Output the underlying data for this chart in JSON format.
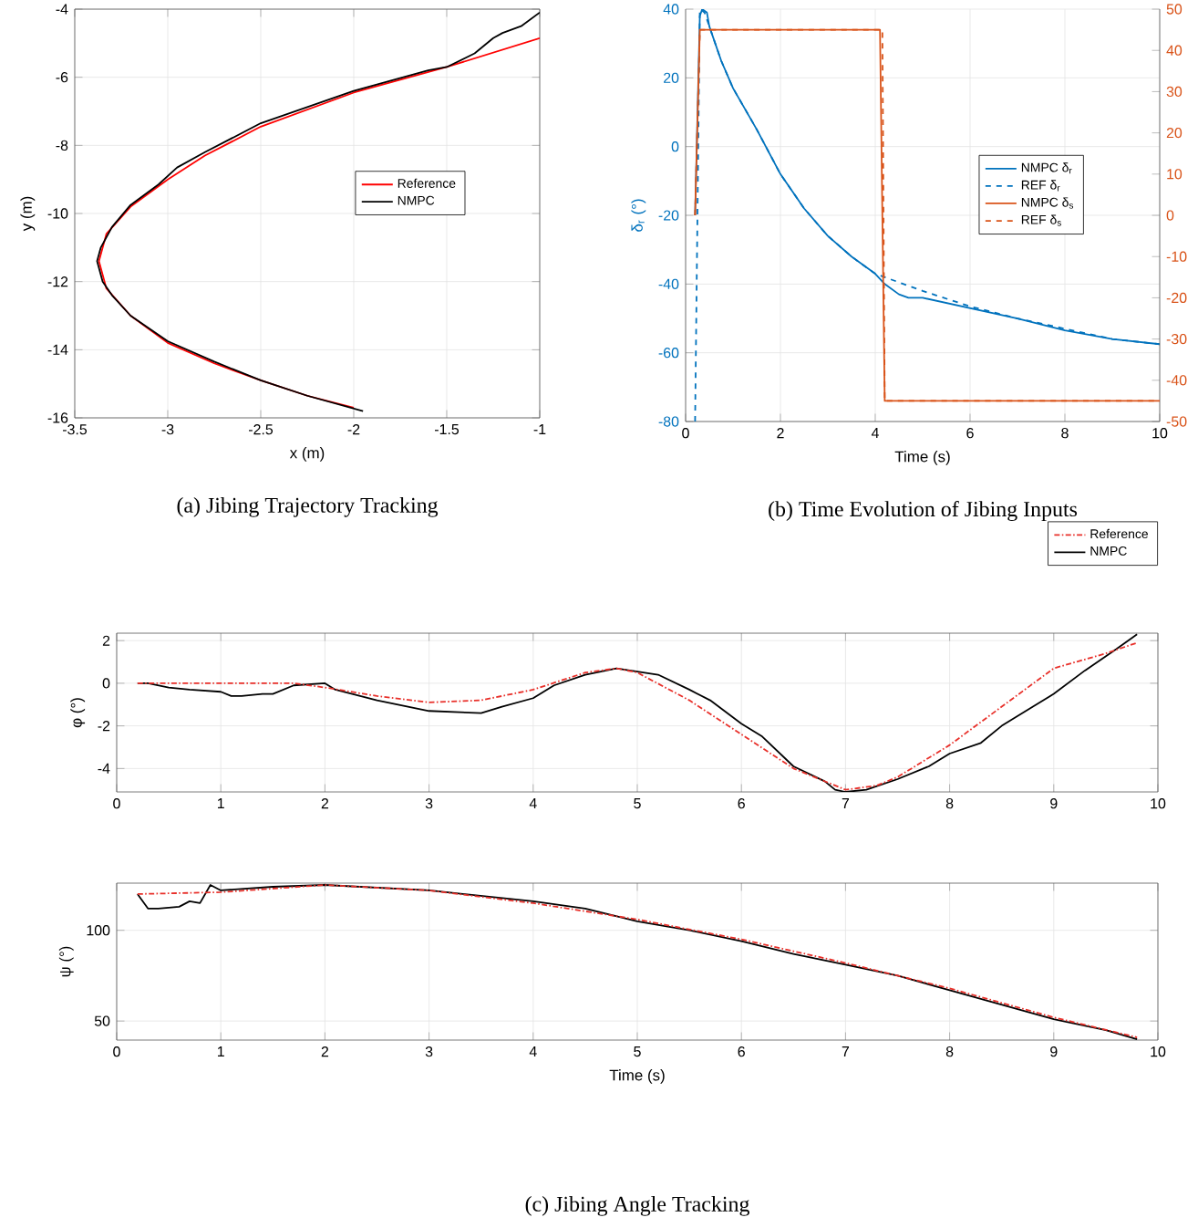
{
  "chart_data": [
    {
      "type": "line",
      "xlabel": "x (m)",
      "ylabel": "y (m)",
      "xlim": [
        -3.5,
        -1
      ],
      "ylim": [
        -16,
        -4
      ],
      "xticks": [
        -3.5,
        -3,
        -2.5,
        -2,
        -1.5,
        -1
      ],
      "yticks": [
        -16,
        -14,
        -12,
        -10,
        -8,
        -6,
        -4
      ],
      "grid": true,
      "legend": "right",
      "annotations": [
        "(a) Jibing Trajectory Tracking"
      ],
      "series": [
        {
          "name": "Reference",
          "color": "#ff0000",
          "line_style": "solid",
          "x": [
            -1,
            -1.5,
            -2,
            -2.5,
            -2.8,
            -3.0,
            -3.2,
            -3.33,
            -3.37,
            -3.33,
            -3.2,
            -3.0,
            -2.75,
            -2.5,
            -2.25,
            -2.0
          ],
          "values": [
            -4.85,
            -5.7,
            -6.45,
            -7.45,
            -8.3,
            -9.0,
            -9.8,
            -10.6,
            -11.4,
            -12.2,
            -13.0,
            -13.8,
            -14.4,
            -14.9,
            -15.35,
            -15.7
          ]
        },
        {
          "name": "NMPC",
          "color": "#000000",
          "line_style": "solid",
          "x": [
            -1,
            -1.1,
            -1.2,
            -1.25,
            -1.35,
            -1.5,
            -1.6,
            -2,
            -2.5,
            -2.8,
            -2.95,
            -3.05,
            -3.2,
            -3.3,
            -3.36,
            -3.38,
            -3.35,
            -3.3,
            -3.2,
            -3.0,
            -2.75,
            -2.5,
            -2.25,
            -1.95
          ],
          "values": [
            -4.1,
            -4.5,
            -4.7,
            -4.85,
            -5.3,
            -5.7,
            -5.8,
            -6.4,
            -7.35,
            -8.2,
            -8.65,
            -9.15,
            -9.75,
            -10.4,
            -11.0,
            -11.4,
            -12.0,
            -12.4,
            -13.0,
            -13.75,
            -14.35,
            -14.9,
            -15.35,
            -15.8
          ]
        }
      ]
    },
    {
      "type": "line",
      "xlabel": "Time (s)",
      "ylabel": "δ$_{r}$ (°)",
      "xlim": [
        0,
        10
      ],
      "ylim": [
        -80,
        40
      ],
      "y2lim": [
        -50,
        50
      ],
      "xticks": [
        0,
        2,
        4,
        6,
        8,
        10
      ],
      "yticks": [
        -80,
        -60,
        -40,
        -20,
        0,
        20,
        40
      ],
      "y2ticks": [
        -50,
        -40,
        -30,
        -20,
        -10,
        0,
        10,
        20,
        30,
        40,
        50
      ],
      "grid": true,
      "legend": "right",
      "annotations": [
        "(b) Time Evolution of Jibing Inputs"
      ],
      "series": [
        {
          "name": "NMPC δ$_{r}$",
          "color": "#0072bd",
          "line_style": "solid",
          "x": [
            0.2,
            0.3,
            0.35,
            0.45,
            0.5,
            0.75,
            1,
            1.5,
            2,
            2.5,
            3,
            3.5,
            4,
            4.2,
            4.5,
            4.7,
            5,
            5.5,
            6,
            7,
            8,
            9,
            10
          ],
          "values": [
            -20,
            38,
            40,
            39,
            35,
            25,
            17,
            5,
            -8,
            -18,
            -26,
            -32,
            -37,
            -40,
            -43,
            -44,
            -44,
            -45.5,
            -47,
            -50,
            -53.5,
            -56,
            -57.5
          ]
        },
        {
          "name": "REF δ$_{r}$",
          "color": "#0072bd",
          "line_style": "dashed",
          "x": [
            0.2,
            0.3,
            0.4,
            0.5,
            0.75,
            1,
            1.5,
            2,
            2.5,
            3,
            3.5,
            4,
            4.1,
            4.2,
            5,
            6,
            7,
            8,
            9,
            10
          ],
          "values": [
            -80,
            40,
            39,
            35,
            25,
            17,
            5,
            -8,
            -18,
            -26,
            -32,
            -37,
            -37.5,
            -38,
            -42,
            -46.5,
            -50,
            -53,
            -56,
            -57.5
          ]
        },
        {
          "name": "NMPC δ$_{s}$",
          "color": "#d95319",
          "line_style": "solid",
          "axis": "y2",
          "x": [
            0.2,
            0.3,
            4.1,
            4.2,
            10
          ],
          "values": [
            0,
            45,
            45,
            -45,
            -45
          ]
        },
        {
          "name": "REF δ$_{s}$",
          "color": "#d95319",
          "line_style": "dashed",
          "axis": "y2",
          "x": [
            0.2,
            0.3,
            4.15,
            4.2,
            10
          ],
          "values": [
            0,
            45,
            45,
            -45,
            -45
          ]
        }
      ]
    },
    {
      "type": "line",
      "ylabel": "φ (°)",
      "xlim": [
        0,
        10
      ],
      "ylim": [
        -5.1,
        2.35
      ],
      "xticks": [
        0,
        1,
        2,
        3,
        4,
        5,
        6,
        7,
        8,
        9,
        10
      ],
      "yticks": [
        -4,
        -2,
        0,
        2
      ],
      "grid": true,
      "legend": "top right",
      "series": [
        {
          "name": "Reference",
          "color": "#e8302a",
          "line_style": "dashdot",
          "x": [
            0.2,
            0.5,
            1.7,
            2,
            2.5,
            3,
            3.5,
            4,
            4.5,
            4.8,
            5,
            5.5,
            6,
            6.5,
            7,
            7.3,
            7.5,
            8,
            8.5,
            9,
            9.5,
            9.8
          ],
          "values": [
            0,
            0,
            0,
            -0.2,
            -0.6,
            -0.9,
            -0.8,
            -0.3,
            0.5,
            0.7,
            0.5,
            -0.8,
            -2.4,
            -4,
            -5,
            -4.8,
            -4.4,
            -2.9,
            -1.1,
            0.7,
            1.4,
            1.9
          ]
        },
        {
          "name": "NMPC",
          "color": "#000000",
          "line_style": "solid",
          "x": [
            0.2,
            0.3,
            0.5,
            0.7,
            1,
            1.1,
            1.2,
            1.4,
            1.5,
            1.7,
            2,
            2.1,
            2.5,
            3,
            3.5,
            3.7,
            4,
            4.2,
            4.5,
            4.8,
            5.2,
            5.5,
            5.7,
            6,
            6.2,
            6.5,
            6.8,
            6.9,
            7,
            7.2,
            7.5,
            7.8,
            8,
            8.3,
            8.5,
            8.8,
            9,
            9.3,
            9.6,
            9.8
          ],
          "values": [
            0,
            0,
            -0.2,
            -0.3,
            -0.4,
            -0.6,
            -0.6,
            -0.5,
            -0.5,
            -0.1,
            0,
            -0.3,
            -0.8,
            -1.3,
            -1.4,
            -1.1,
            -0.7,
            -0.1,
            0.4,
            0.7,
            0.4,
            -0.3,
            -0.8,
            -1.9,
            -2.5,
            -3.9,
            -4.6,
            -5,
            -5.1,
            -5,
            -4.5,
            -3.9,
            -3.3,
            -2.8,
            -2,
            -1.1,
            -0.5,
            0.6,
            1.6,
            2.3
          ]
        }
      ]
    },
    {
      "type": "line",
      "xlabel": "Time (s)",
      "ylabel": "ψ (°)",
      "xlim": [
        0,
        10
      ],
      "ylim": [
        39.5,
        126
      ],
      "xticks": [
        0,
        1,
        2,
        3,
        4,
        5,
        6,
        7,
        8,
        9,
        10
      ],
      "yticks": [
        50,
        100
      ],
      "grid": true,
      "annotations": [
        "(c) Jibing Angle Tracking"
      ],
      "series": [
        {
          "color": "#e8302a",
          "line_style": "dashdot",
          "x": [
            0.2,
            1,
            2,
            3,
            4,
            5,
            6,
            7,
            8,
            9,
            9.8
          ],
          "values": [
            120,
            121,
            125,
            122,
            115,
            106,
            95,
            82,
            68,
            52,
            41
          ]
        },
        {
          "color": "#000000",
          "line_style": "solid",
          "x": [
            0.2,
            0.3,
            0.4,
            0.6,
            0.7,
            0.8,
            0.9,
            1,
            1.5,
            2,
            3,
            4,
            4.5,
            5,
            5.5,
            6,
            6.5,
            7,
            7.5,
            8,
            8.5,
            9,
            9.5,
            9.8
          ],
          "values": [
            120,
            112,
            112,
            113,
            116,
            115,
            125,
            122,
            124,
            125,
            122,
            116,
            112,
            105,
            100,
            94,
            87,
            81,
            75,
            67,
            59,
            51,
            45,
            40
          ]
        }
      ]
    }
  ]
}
